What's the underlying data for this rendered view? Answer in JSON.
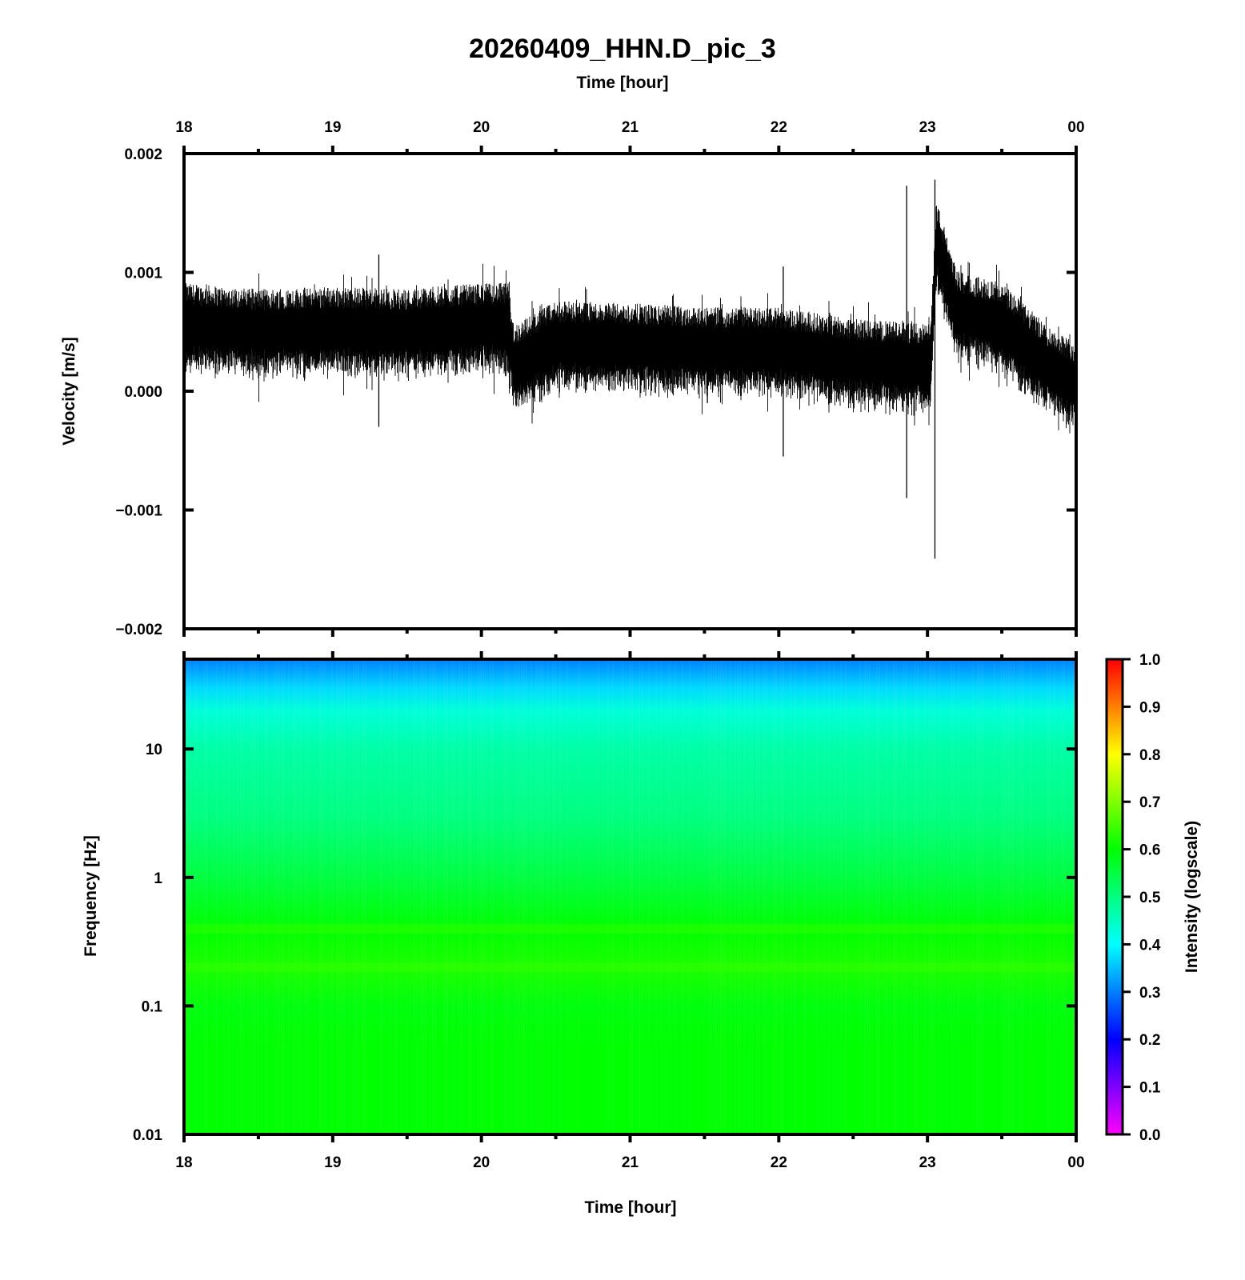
{
  "title": "20260409_HHN.D_pic_3",
  "chart_data": [
    {
      "type": "line",
      "panel": "waveform",
      "xlabel_top": "Time [hour]",
      "ylabel": "Velocity [m/s]",
      "x_ticks": [
        "18",
        "19",
        "20",
        "21",
        "22",
        "23",
        "00"
      ],
      "x_range_hours": [
        18,
        24
      ],
      "y_ticks": [
        "0.002",
        "0.001",
        "0.000",
        "−0.001",
        "−0.002"
      ],
      "ylim": [
        -0.002,
        0.002
      ],
      "series": [
        {
          "x": [
            18.0,
            18.5,
            19.0,
            19.5,
            20.0,
            20.18,
            20.22,
            20.5,
            21.0,
            21.5,
            22.0,
            22.5,
            22.85,
            23.02,
            23.06,
            23.2,
            23.5,
            23.8,
            24.0
          ],
          "y": [
            0.00055,
            0.0005,
            0.00052,
            0.0005,
            0.00055,
            0.00055,
            0.0002,
            0.0004,
            0.00038,
            0.00035,
            0.00035,
            0.00025,
            0.00022,
            0.0002,
            0.00125,
            0.00065,
            0.00055,
            0.0002,
            5e-05
          ]
        }
      ],
      "spikes": [
        {
          "x": 19.31,
          "min": -0.0003,
          "max": 0.00115
        },
        {
          "x": 21.52,
          "min": -0.0001,
          "max": 0.0006
        },
        {
          "x": 22.03,
          "min": -0.00055,
          "max": 0.00105
        },
        {
          "x": 22.86,
          "min": -0.0009,
          "max": 0.00173
        },
        {
          "x": 23.05,
          "min": -0.00141,
          "max": 0.00178
        }
      ],
      "grid": false
    },
    {
      "type": "heatmap",
      "panel": "spectrogram",
      "xlabel": "Time [hour]",
      "ylabel": "Frequency [Hz]",
      "x_ticks": [
        "18",
        "19",
        "20",
        "21",
        "22",
        "23",
        "00"
      ],
      "y_ticks": [
        "10",
        "1",
        "0.1",
        "0.01"
      ],
      "y_scale": "log",
      "ylim_hz": [
        0.01,
        50
      ],
      "intensity_profile": {
        "freq_hz": [
          0.01,
          0.05,
          0.1,
          0.2,
          0.4,
          1,
          3,
          10,
          20,
          30,
          50
        ],
        "intensity": [
          0.6,
          0.6,
          0.59,
          0.62,
          0.6,
          0.55,
          0.5,
          0.47,
          0.43,
          0.37,
          0.3
        ]
      },
      "colorbar": {
        "label": "Intensity (logscale)",
        "ticks": [
          "1.0",
          "0.9",
          "0.8",
          "0.7",
          "0.6",
          "0.5",
          "0.4",
          "0.3",
          "0.2",
          "0.1",
          "0.0"
        ],
        "colors": [
          "#ff00ff",
          "#0000ff",
          "#00ffff",
          "#00ff00",
          "#ffff00",
          "#ff0000"
        ]
      }
    }
  ]
}
